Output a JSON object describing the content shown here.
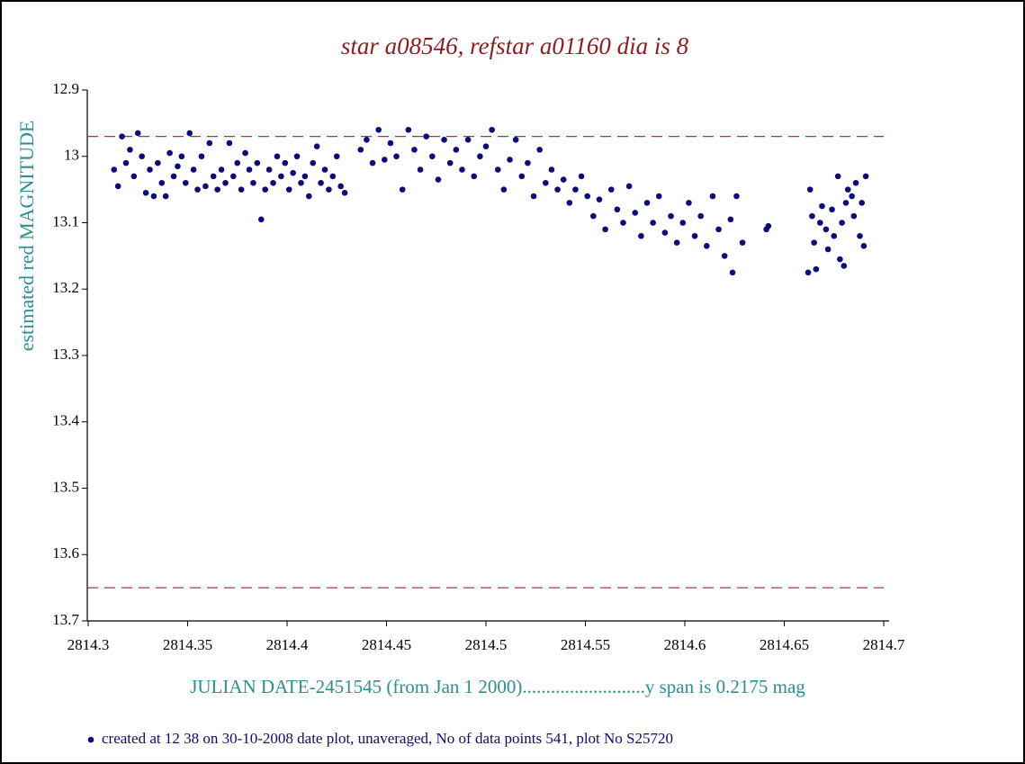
{
  "chart_data": {
    "type": "scatter",
    "title": "star a08546, refstar a01160  dia is  8",
    "y_label": "estimated red MAGNITUDE",
    "x_label": "JULIAN DATE-2451545 (from Jan 1 2000)..........................y span is 0.2175 mag",
    "footer": "created at 12 38 on 30-10-2008 date plot, unaveraged, No of data points 541,  plot No S25720",
    "color": "#0b0b7c",
    "xlim": [
      2814.3,
      2814.7
    ],
    "xticks": [
      2814.3,
      2814.35,
      2814.4,
      2814.45,
      2814.5,
      2814.55,
      2814.6,
      2814.65,
      2814.7
    ],
    "ylim": [
      12.9,
      13.7
    ],
    "y_inverted": true,
    "yticks": [
      12.9,
      13,
      13.1,
      13.2,
      13.3,
      13.4,
      13.5,
      13.6,
      13.7
    ],
    "hlines": [
      12.97,
      13.65
    ],
    "hline_color": "#a33a3a",
    "x": [
      2814.313,
      2814.315,
      2814.317,
      2814.319,
      2814.321,
      2814.323,
      2814.325,
      2814.327,
      2814.329,
      2814.331,
      2814.333,
      2814.335,
      2814.337,
      2814.339,
      2814.341,
      2814.343,
      2814.345,
      2814.347,
      2814.349,
      2814.351,
      2814.353,
      2814.355,
      2814.357,
      2814.359,
      2814.361,
      2814.363,
      2814.365,
      2814.367,
      2814.369,
      2814.371,
      2814.373,
      2814.375,
      2814.377,
      2814.379,
      2814.381,
      2814.383,
      2814.385,
      2814.387,
      2814.389,
      2814.391,
      2814.393,
      2814.395,
      2814.397,
      2814.399,
      2814.401,
      2814.403,
      2814.405,
      2814.407,
      2814.409,
      2814.411,
      2814.413,
      2814.415,
      2814.417,
      2814.419,
      2814.421,
      2814.423,
      2814.425,
      2814.427,
      2814.429,
      2814.437,
      2814.44,
      2814.443,
      2814.446,
      2814.449,
      2814.452,
      2814.455,
      2814.458,
      2814.461,
      2814.464,
      2814.467,
      2814.47,
      2814.473,
      2814.476,
      2814.479,
      2814.482,
      2814.485,
      2814.488,
      2814.491,
      2814.494,
      2814.497,
      2814.5,
      2814.503,
      2814.506,
      2814.509,
      2814.512,
      2814.515,
      2814.518,
      2814.521,
      2814.524,
      2814.527,
      2814.53,
      2814.533,
      2814.536,
      2814.539,
      2814.542,
      2814.545,
      2814.548,
      2814.551,
      2814.554,
      2814.557,
      2814.56,
      2814.563,
      2814.566,
      2814.569,
      2814.572,
      2814.575,
      2814.578,
      2814.581,
      2814.584,
      2814.587,
      2814.59,
      2814.593,
      2814.596,
      2814.599,
      2814.602,
      2814.605,
      2814.608,
      2814.611,
      2814.614,
      2814.617,
      2814.62,
      2814.623,
      2814.626,
      2814.629,
      2814.641,
      2814.642,
      2814.624,
      2814.662,
      2814.663,
      2814.664,
      2814.665,
      2814.666,
      2814.668,
      2814.669,
      2814.671,
      2814.672,
      2814.674,
      2814.675,
      2814.677,
      2814.678,
      2814.679,
      2814.68,
      2814.681,
      2814.682,
      2814.684,
      2814.685,
      2814.686,
      2814.688,
      2814.689,
      2814.69,
      2814.691
    ],
    "values": [
      13.02,
      13.045,
      12.97,
      13.01,
      12.99,
      13.03,
      12.965,
      13.0,
      13.055,
      13.02,
      13.06,
      13.01,
      13.04,
      13.06,
      12.995,
      13.03,
      13.015,
      13.0,
      13.04,
      12.965,
      13.02,
      13.05,
      13.0,
      13.045,
      12.98,
      13.03,
      13.05,
      13.02,
      13.04,
      12.98,
      13.03,
      13.01,
      13.05,
      12.995,
      13.02,
      13.04,
      13.01,
      13.095,
      13.05,
      13.02,
      13.04,
      13.0,
      13.03,
      13.01,
      13.05,
      13.025,
      13.0,
      13.04,
      13.03,
      13.06,
      13.01,
      12.985,
      13.04,
      13.02,
      13.05,
      13.03,
      13.0,
      13.045,
      13.055,
      12.99,
      12.975,
      13.01,
      12.96,
      13.005,
      12.98,
      13.0,
      13.05,
      12.96,
      12.99,
      13.02,
      12.97,
      13.0,
      13.035,
      12.975,
      13.01,
      12.99,
      13.02,
      12.975,
      13.03,
      13.0,
      12.985,
      12.96,
      13.02,
      13.05,
      13.005,
      12.975,
      13.03,
      13.01,
      13.06,
      12.99,
      13.04,
      13.02,
      13.05,
      13.035,
      13.07,
      13.05,
      13.03,
      13.06,
      13.09,
      13.065,
      13.11,
      13.05,
      13.08,
      13.1,
      13.045,
      13.085,
      13.12,
      13.07,
      13.1,
      13.06,
      13.115,
      13.09,
      13.13,
      13.1,
      13.07,
      13.12,
      13.09,
      13.135,
      13.06,
      13.11,
      13.15,
      13.095,
      13.06,
      13.13,
      13.11,
      13.105,
      13.175,
      13.175,
      13.05,
      13.09,
      13.13,
      13.17,
      13.1,
      13.075,
      13.11,
      13.14,
      13.08,
      13.12,
      13.03,
      13.155,
      13.1,
      13.165,
      13.07,
      13.05,
      13.06,
      13.09,
      13.04,
      13.12,
      13.07,
      13.135,
      13.03
    ]
  }
}
